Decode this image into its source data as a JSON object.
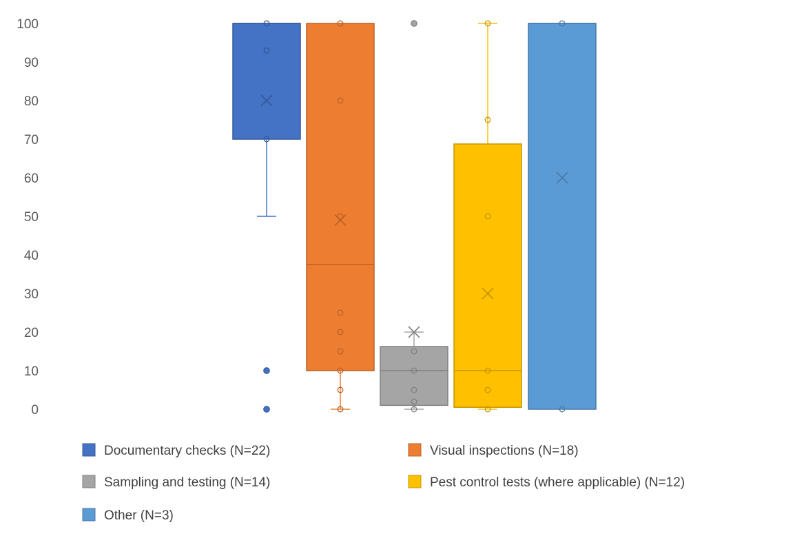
{
  "chart_data": {
    "type": "box",
    "ylim": [
      0,
      100
    ],
    "yticks": [
      0,
      10,
      20,
      30,
      40,
      50,
      60,
      70,
      80,
      90,
      100
    ],
    "grid": false,
    "legend_position": "bottom",
    "series": [
      {
        "name": "Documentary checks (N=22)",
        "color": "#4472C4",
        "whisker_low": 50,
        "q1": 70,
        "median": 100,
        "q3": 100,
        "whisker_high": 100,
        "mean": 80,
        "points": [
          100,
          93,
          70
        ],
        "outliers": [
          10,
          0
        ]
      },
      {
        "name": "Visual inspections (N=18)",
        "color": "#ED7D31",
        "whisker_low": 0,
        "q1": 10,
        "median": 37.5,
        "q3": 100,
        "whisker_high": 100,
        "mean": 49,
        "points": [
          100,
          80,
          50,
          25,
          20,
          15,
          10,
          5,
          0
        ],
        "outliers": []
      },
      {
        "name": "Sampling and testing (N=14)",
        "color": "#A5A5A5",
        "whisker_low": 0,
        "q1": 1,
        "median": 10,
        "q3": 16.25,
        "whisker_high": 20,
        "mean": 20,
        "points": [
          15,
          10,
          5,
          2,
          0
        ],
        "outliers": [
          100
        ]
      },
      {
        "name": "Pest control tests (where applicable) (N=12)",
        "color": "#FFC000",
        "whisker_low": 0,
        "q1": 0.5,
        "median": 10,
        "q3": 68.75,
        "whisker_high": 100,
        "mean": 30,
        "points": [
          100,
          75,
          50,
          10,
          5,
          0
        ],
        "outliers": []
      },
      {
        "name": "Other (N=3)",
        "color": "#5B9BD5",
        "whisker_low": 0,
        "q1": 0,
        "median": 100,
        "q3": 100,
        "whisker_high": 100,
        "mean": 60,
        "points": [
          100,
          0
        ],
        "outliers": []
      }
    ]
  }
}
